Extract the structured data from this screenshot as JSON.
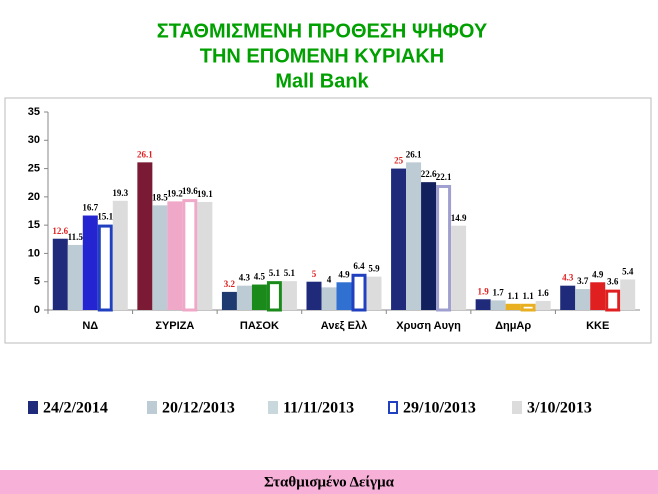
{
  "chart_data": {
    "type": "bar",
    "title": [
      "ΣΤΑΘΜΙΣΜΕΝΗ ΠΡΟΘΕΣΗ ΨΗΦΟΥ",
      "ΤΗΝ ΕΠΟΜΕΝΗ ΚΥΡΙΑΚΗ",
      "Mall Bank"
    ],
    "title_color": "#00a000",
    "categories": [
      "ΝΔ",
      "ΣΥΡΙΖΑ",
      "ΠΑΣΟΚ",
      "Ανεξ Ελλ",
      "Χρυση Αυγη",
      "ΔημΑρ",
      "ΚΚΕ"
    ],
    "series": [
      {
        "name": "24/2/2014",
        "color": "#1f2a7a",
        "label_color": "#e02020",
        "colors": [
          "#1f2a7a",
          "#7a1a35",
          "#1f3a70",
          "#1f2a7a",
          "#1f2a7a",
          "#1f2a7a",
          "#1f2a7a"
        ],
        "values": [
          12.6,
          26.1,
          3.2,
          5,
          25,
          1.9,
          4.3
        ]
      },
      {
        "name": "20/12/2013",
        "color": "#bccbd4",
        "label_color": "#000000",
        "values": [
          11.5,
          18.5,
          4.3,
          4,
          26.1,
          1.7,
          3.7
        ]
      },
      {
        "name": "11/11/2013",
        "color": "#c8d8dc",
        "label_color": "#000000",
        "colors": [
          "#2424d0",
          "#f0a8c8",
          "#1a8a1a",
          "#3070d0",
          "#13205e",
          "#e8b020",
          "#e02020"
        ],
        "values": [
          16.7,
          19.2,
          4.5,
          4.9,
          22.6,
          1.1,
          4.9
        ]
      },
      {
        "name": "29/10/2013",
        "color": "#2040c0",
        "hollow": true,
        "label_color": "#000000",
        "colors": [
          "#2040c0",
          "#f0a8c8",
          "#1a8a1a",
          "#2040c0",
          "#a0a0d0",
          "#e8b020",
          "#e02020"
        ],
        "values": [
          15.1,
          19.6,
          5.1,
          6.4,
          22.1,
          1.1,
          3.6
        ]
      },
      {
        "name": "3/10/2013",
        "color": "#dcdcdc",
        "label_color": "#000000",
        "values": [
          19.3,
          19.1,
          5.1,
          5.9,
          14.9,
          1.6,
          5.4
        ]
      }
    ],
    "ylim": [
      0,
      35
    ],
    "yticks": [
      0,
      5,
      10,
      15,
      20,
      25,
      30,
      35
    ],
    "grid": false
  },
  "footer": "Σταθμισμένο Δείγμα"
}
